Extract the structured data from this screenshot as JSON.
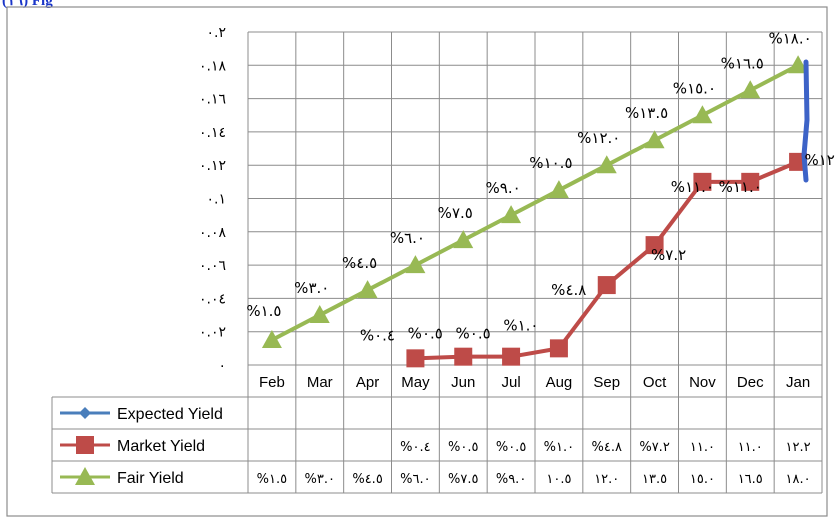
{
  "page_fragment": "(١٦) Fig",
  "chart_data": {
    "type": "line",
    "categories": [
      "Feb",
      "Mar",
      "Apr",
      "May",
      "Jun",
      "Jul",
      "Aug",
      "Sep",
      "Oct",
      "Nov",
      "Dec",
      "Jan"
    ],
    "y_ticks": [
      "٠",
      "٠.٠٢",
      "٠.٠٤",
      "٠.٠٦",
      "٠.٠٨",
      "٠.١",
      "٠.١٢",
      "٠.١٤",
      "٠.١٦",
      "٠.١٨",
      "٠.٢"
    ],
    "ylim": [
      0,
      0.2
    ],
    "grid": true,
    "legend_placement": "data-table-left",
    "series": [
      {
        "name": "Expected Yield",
        "color": "#4a7ebb",
        "marker": "diamond",
        "values": [
          null,
          null,
          null,
          null,
          null,
          null,
          null,
          null,
          null,
          null,
          null,
          null
        ],
        "labels": [
          "",
          "",
          "",
          "",
          "",
          "",
          "",
          "",
          "",
          "",
          "",
          ""
        ],
        "table_values": [
          "",
          "",
          "",
          "",
          "",
          "",
          "",
          "",
          "",
          "",
          "",
          ""
        ]
      },
      {
        "name": "Market Yield",
        "color": "#be4b48",
        "marker": "square",
        "values": [
          null,
          null,
          null,
          0.004,
          0.005,
          0.005,
          0.01,
          0.048,
          0.072,
          0.11,
          0.11,
          0.122
        ],
        "labels": [
          "",
          "",
          "",
          "%٠.٤",
          "%٠.٥",
          "%٠.٥",
          "%١.٠",
          "%٤.٨",
          "%٧.٢",
          "%١١.٠",
          "%١١.٠",
          "%١٢.٢"
        ],
        "table_values": [
          "",
          "",
          "",
          "%٠.٤",
          "%٠.٥",
          "%٠.٥",
          "%١.٠",
          "%٤.٨",
          "%٧.٢",
          "١١.٠",
          "١١.٠",
          "١٢.٢"
        ]
      },
      {
        "name": "Fair Yield",
        "color": "#98b954",
        "marker": "triangle",
        "values": [
          0.015,
          0.03,
          0.045,
          0.06,
          0.075,
          0.09,
          0.105,
          0.12,
          0.135,
          0.15,
          0.165,
          0.18
        ],
        "labels": [
          "%١.٥",
          "%٣.٠",
          "%٤.٥",
          "%٦.٠",
          "%٧.٥",
          "%٩.٠",
          "%١٠.٥",
          "%١٢.٠",
          "%١٣.٥",
          "%١٥.٠",
          "%١٦.٥",
          "%١٨.٠"
        ],
        "table_values": [
          "%١.٥",
          "%٣.٠",
          "%٤.٥",
          "%٦.٠",
          "%٧.٥",
          "%٩.٠",
          "١٠.٥",
          "١٢.٠",
          "١٣.٥",
          "١٥.٠",
          "١٦.٥",
          "١٨.٠"
        ]
      }
    ]
  }
}
